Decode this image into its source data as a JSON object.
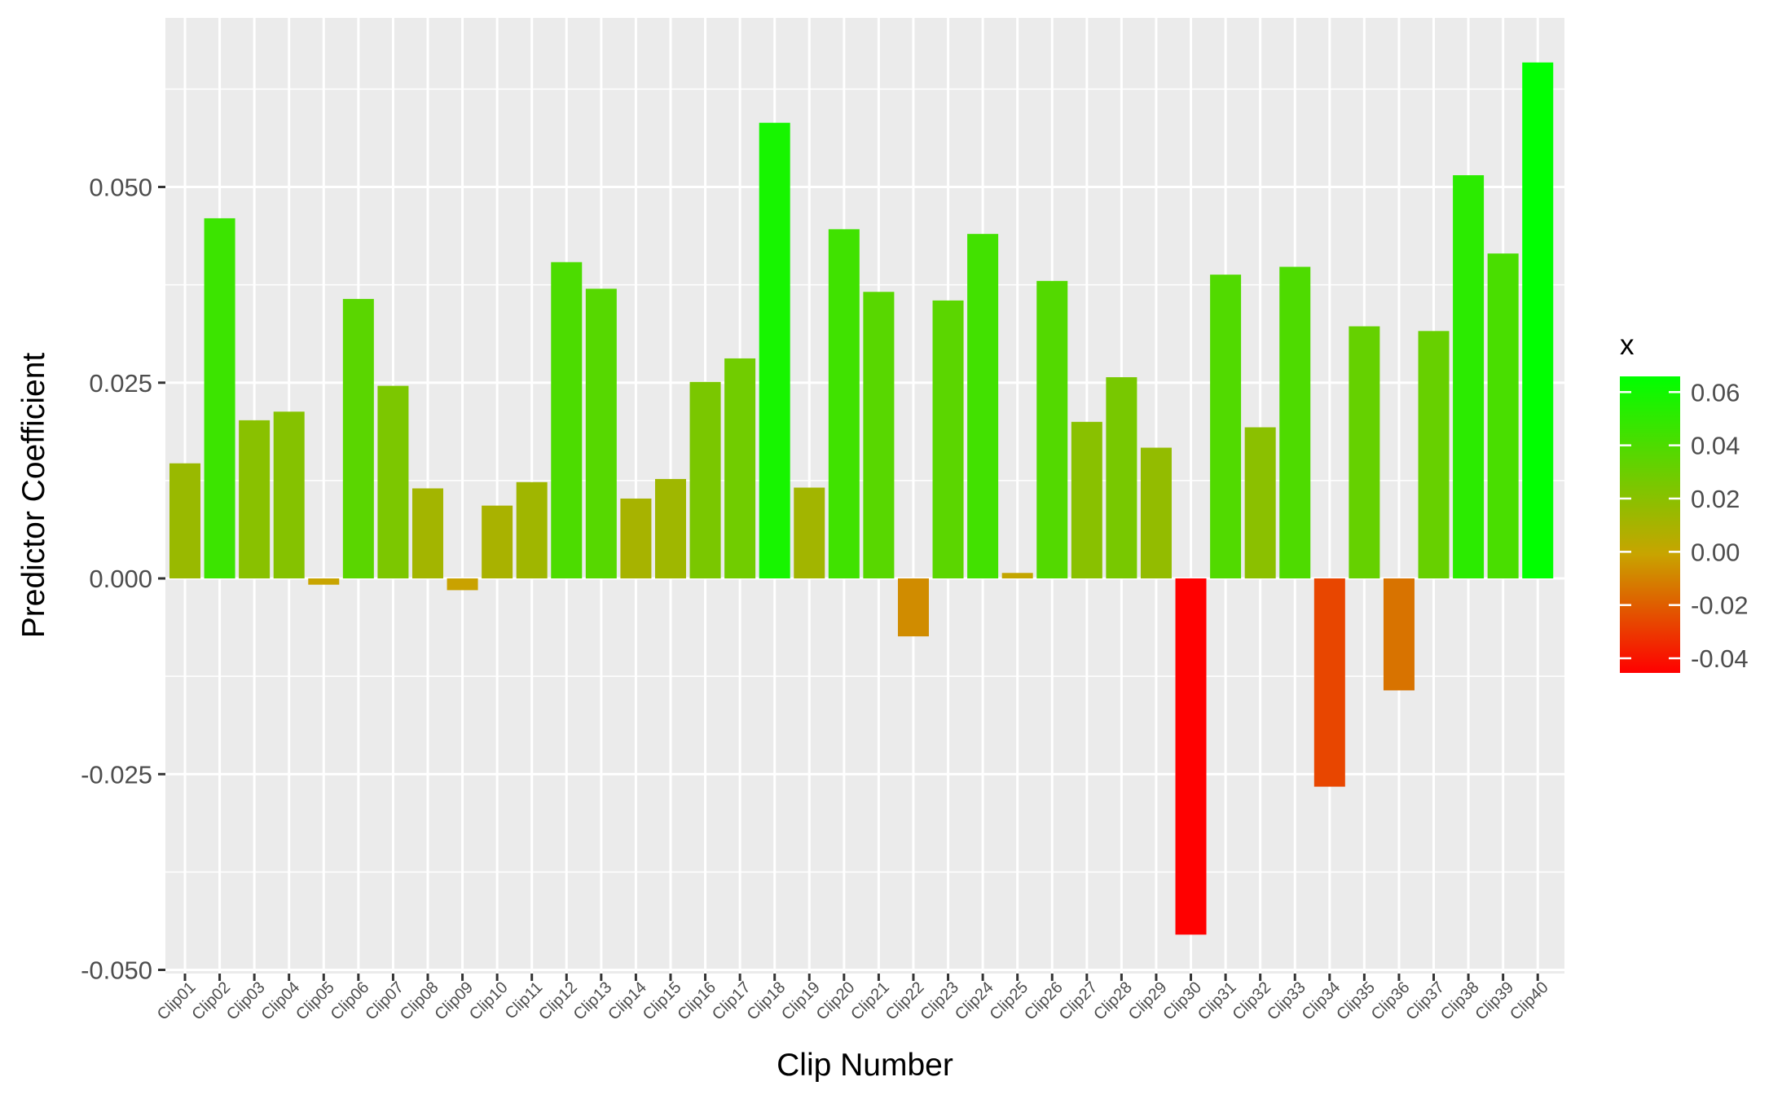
{
  "chart_data": {
    "type": "bar",
    "xlabel": "Clip Number",
    "ylabel": "Predictor Coefficient",
    "ylim": [
      -0.05,
      0.07
    ],
    "yticks": [
      -0.05,
      -0.025,
      0.0,
      0.025,
      0.05
    ],
    "ytick_labels": [
      "-0.050",
      "-0.025",
      "0.000",
      "0.025",
      "0.050"
    ],
    "categories": [
      "Clip01",
      "Clip02",
      "Clip03",
      "Clip04",
      "Clip05",
      "Clip06",
      "Clip07",
      "Clip08",
      "Clip09",
      "Clip10",
      "Clip11",
      "Clip12",
      "Clip13",
      "Clip14",
      "Clip15",
      "Clip16",
      "Clip17",
      "Clip18",
      "Clip19",
      "Clip20",
      "Clip21",
      "Clip22",
      "Clip23",
      "Clip24",
      "Clip25",
      "Clip26",
      "Clip27",
      "Clip28",
      "Clip29",
      "Clip30",
      "Clip31",
      "Clip32",
      "Clip33",
      "Clip34",
      "Clip35",
      "Clip36",
      "Clip37",
      "Clip38",
      "Clip39",
      "Clip40"
    ],
    "values": [
      0.0147,
      0.046,
      0.0202,
      0.0213,
      -0.0008,
      0.0357,
      0.0246,
      0.0115,
      -0.0015,
      0.0093,
      0.0123,
      0.0404,
      0.037,
      0.0102,
      0.0127,
      0.0251,
      0.0281,
      0.0582,
      0.0116,
      0.0446,
      0.0366,
      -0.0074,
      0.0355,
      0.044,
      0.0007,
      0.038,
      0.02,
      0.0257,
      0.0167,
      -0.0455,
      0.0388,
      0.0193,
      0.0398,
      -0.0266,
      0.0322,
      -0.0143,
      0.0316,
      0.0515,
      0.0415,
      0.0659
    ],
    "grid": true,
    "legend": {
      "title": "x",
      "position": "right",
      "type": "colorbar",
      "ticks": [
        0.06,
        0.04,
        0.02,
        0.0,
        -0.02,
        -0.04
      ],
      "tick_labels": [
        "0.06",
        "0.04",
        "0.02",
        "0.00",
        "-0.02",
        "-0.04"
      ],
      "range": [
        -0.0455,
        0.0659
      ],
      "color_low": "#ff0000",
      "color_mid": "#c8a400",
      "color_high": "#00ff00"
    },
    "colors": {
      "panel_background": "#ebebeb",
      "grid": "#ffffff"
    }
  }
}
